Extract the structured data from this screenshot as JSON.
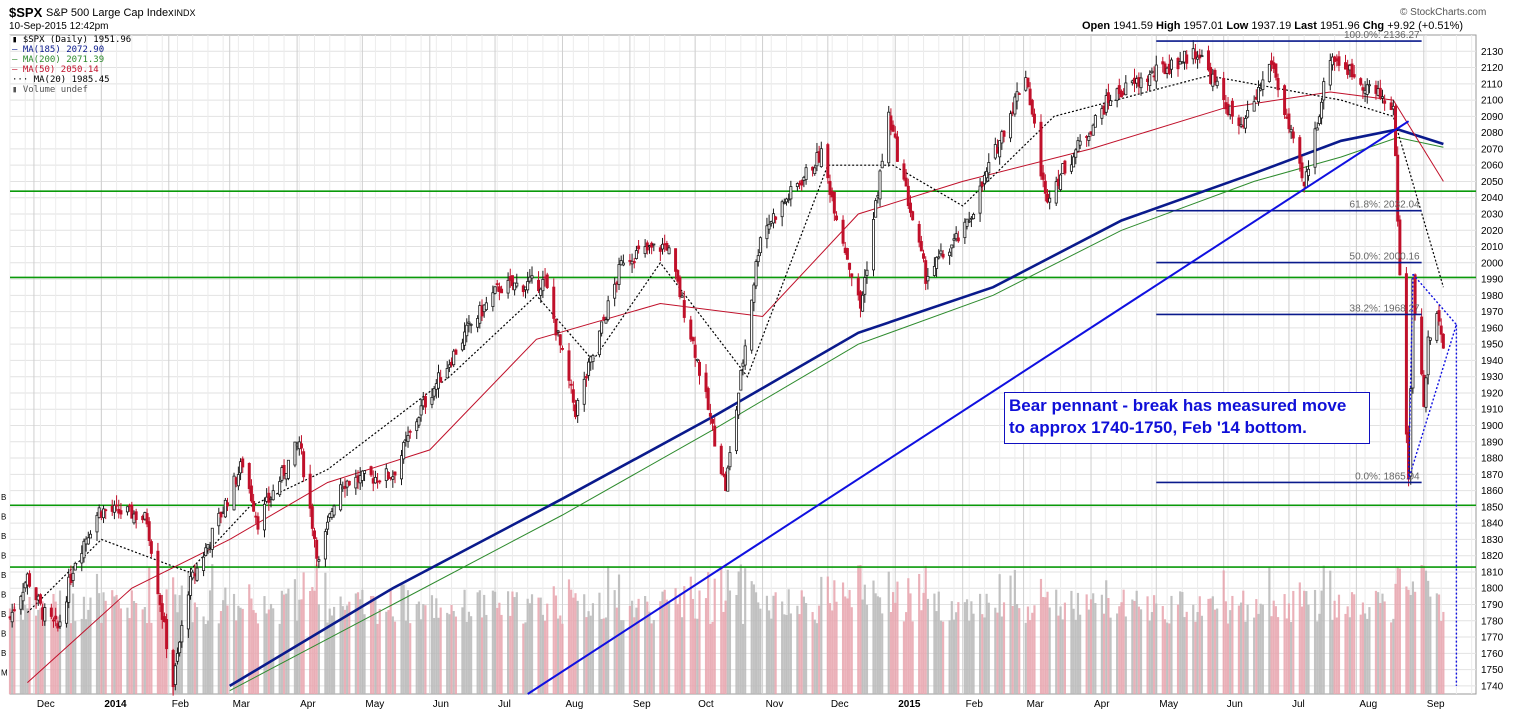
{
  "header": {
    "symbol": "$SPX",
    "name": "S&P 500 Large Cap Index",
    "exchange": "INDX",
    "datetime": "10-Sep-2015 12:42pm",
    "watermark": "© StockCharts.com",
    "quote": {
      "open_label": "Open",
      "open": "1941.59",
      "high_label": "High",
      "high": "1957.01",
      "low_label": "Low",
      "low": "1937.19",
      "last_label": "Last",
      "last": "1951.96",
      "chg_label": "Chg",
      "chg": "+9.92 (+0.51%)"
    }
  },
  "legend": [
    {
      "text": "$SPX (Daily) 1951.96",
      "color": "#1a1a1a",
      "icon": "candlestick-icon"
    },
    {
      "text": "MA(185) 2072.90",
      "color": "#0a1a8c",
      "icon": "line-icon"
    },
    {
      "text": "MA(200) 2071.39",
      "color": "#2e8b2e",
      "icon": "line-icon"
    },
    {
      "text": "MA(50) 2050.14",
      "color": "#c0102a",
      "icon": "line-icon"
    },
    {
      "text": "MA(20) 1985.45",
      "color": "#000000",
      "icon": "dotted-line-icon"
    },
    {
      "text": "Volume undef",
      "color": "#555555",
      "icon": "volume-bars-icon"
    }
  ],
  "annotation": {
    "line1": "Bear pennant - break has measured move",
    "line2": "to approx 1740-1750, Feb '14 bottom."
  },
  "colors": {
    "up": "#1a1a1a",
    "down": "#c0102a",
    "volume_up": "#b7b7b7",
    "volume_down": "#e7a3ad",
    "ma185": "#0a1a8c",
    "ma200": "#2e8b2e",
    "ma50": "#c0102a",
    "ma20": "#000000",
    "support": "#0a9a0a",
    "trend": "#1010e0",
    "fib": "#0a1a8c"
  },
  "chart_data": {
    "type": "candlestick",
    "title": "$SPX S&P 500 Large Cap Index INDX",
    "ylim": [
      1735,
      2140
    ],
    "y_ticks": [
      1740,
      1750,
      1760,
      1770,
      1780,
      1790,
      1800,
      1810,
      1820,
      1830,
      1840,
      1850,
      1860,
      1870,
      1880,
      1890,
      1900,
      1910,
      1920,
      1930,
      1940,
      1950,
      1960,
      1970,
      1980,
      1990,
      2000,
      2010,
      2020,
      2030,
      2040,
      2050,
      2060,
      2070,
      2080,
      2090,
      2100,
      2110,
      2120,
      2130
    ],
    "x_range": [
      "2013-11-20",
      "2015-09-25"
    ],
    "x_tick_labels": [
      {
        "date": "2013-12-01",
        "label": "Dec"
      },
      {
        "date": "2014-01-01",
        "label": "2014"
      },
      {
        "date": "2014-02-01",
        "label": "Feb"
      },
      {
        "date": "2014-03-01",
        "label": "Mar"
      },
      {
        "date": "2014-04-01",
        "label": "Apr"
      },
      {
        "date": "2014-05-01",
        "label": "May"
      },
      {
        "date": "2014-06-01",
        "label": "Jun"
      },
      {
        "date": "2014-07-01",
        "label": "Jul"
      },
      {
        "date": "2014-08-01",
        "label": "Aug"
      },
      {
        "date": "2014-09-01",
        "label": "Sep"
      },
      {
        "date": "2014-10-01",
        "label": "Oct"
      },
      {
        "date": "2014-11-01",
        "label": "Nov"
      },
      {
        "date": "2014-12-01",
        "label": "Dec"
      },
      {
        "date": "2015-01-01",
        "label": "2015"
      },
      {
        "date": "2015-02-01",
        "label": "Feb"
      },
      {
        "date": "2015-03-01",
        "label": "Mar"
      },
      {
        "date": "2015-04-01",
        "label": "Apr"
      },
      {
        "date": "2015-05-01",
        "label": "May"
      },
      {
        "date": "2015-06-01",
        "label": "Jun"
      },
      {
        "date": "2015-07-01",
        "label": "Jul"
      },
      {
        "date": "2015-08-01",
        "label": "Aug"
      },
      {
        "date": "2015-09-01",
        "label": "Sep"
      }
    ],
    "close_path": [
      [
        "2013-11-20",
        1782
      ],
      [
        "2013-11-28",
        1807
      ],
      [
        "2013-12-05",
        1785
      ],
      [
        "2013-12-12",
        1775
      ],
      [
        "2013-12-20",
        1818
      ],
      [
        "2013-12-31",
        1848
      ],
      [
        "2014-01-15",
        1846
      ],
      [
        "2014-01-22",
        1842
      ],
      [
        "2014-01-28",
        1792
      ],
      [
        "2014-02-03",
        1741
      ],
      [
        "2014-02-10",
        1800
      ],
      [
        "2014-02-20",
        1830
      ],
      [
        "2014-03-07",
        1877
      ],
      [
        "2014-03-14",
        1841
      ],
      [
        "2014-04-02",
        1890
      ],
      [
        "2014-04-11",
        1815
      ],
      [
        "2014-04-20",
        1865
      ],
      [
        "2014-05-15",
        1870
      ],
      [
        "2014-05-28",
        1910
      ],
      [
        "2014-06-20",
        1962
      ],
      [
        "2014-07-03",
        1985
      ],
      [
        "2014-07-24",
        1988
      ],
      [
        "2014-08-07",
        1909
      ],
      [
        "2014-08-29",
        2003
      ],
      [
        "2014-09-18",
        2011
      ],
      [
        "2014-10-01",
        1946
      ],
      [
        "2014-10-15",
        1862
      ],
      [
        "2014-10-31",
        2018
      ],
      [
        "2014-11-28",
        2067
      ],
      [
        "2014-12-16",
        1972
      ],
      [
        "2014-12-29",
        2090
      ],
      [
        "2015-01-15",
        1992
      ],
      [
        "2015-02-02",
        2020
      ],
      [
        "2015-03-02",
        2117
      ],
      [
        "2015-03-11",
        2040
      ],
      [
        "2015-04-10",
        2102
      ],
      [
        "2015-05-20",
        2130
      ],
      [
        "2015-06-09",
        2080
      ],
      [
        "2015-06-23",
        2124
      ],
      [
        "2015-07-08",
        2046
      ],
      [
        "2015-07-20",
        2128
      ],
      [
        "2015-08-10",
        2104
      ],
      [
        "2015-08-18",
        2096
      ],
      [
        "2015-08-24",
        1893
      ],
      [
        "2015-08-25",
        1867
      ],
      [
        "2015-08-27",
        1987
      ],
      [
        "2015-09-01",
        1913
      ],
      [
        "2015-09-03",
        1951
      ],
      [
        "2015-09-08",
        1969
      ],
      [
        "2015-09-10",
        1952
      ]
    ],
    "moving_averages": {
      "MA(185)": [
        [
          "2014-03-01",
          1740
        ],
        [
          "2014-05-15",
          1800
        ],
        [
          "2014-08-01",
          1855
        ],
        [
          "2014-10-10",
          1906
        ],
        [
          "2014-12-15",
          1957
        ],
        [
          "2015-02-15",
          1985
        ],
        [
          "2015-04-15",
          2026
        ],
        [
          "2015-06-15",
          2055
        ],
        [
          "2015-07-25",
          2075
        ],
        [
          "2015-08-20",
          2082
        ],
        [
          "2015-09-10",
          2073
        ]
      ],
      "MA(200)": [
        [
          "2014-03-01",
          1737
        ],
        [
          "2014-05-15",
          1790
        ],
        [
          "2014-08-01",
          1845
        ],
        [
          "2014-10-10",
          1898
        ],
        [
          "2014-12-15",
          1950
        ],
        [
          "2015-02-15",
          1980
        ],
        [
          "2015-04-15",
          2020
        ],
        [
          "2015-06-15",
          2050
        ],
        [
          "2015-07-25",
          2065
        ],
        [
          "2015-08-20",
          2077
        ],
        [
          "2015-09-10",
          2071
        ]
      ],
      "MA(50)": [
        [
          "2013-11-28",
          1742
        ],
        [
          "2014-01-15",
          1800
        ],
        [
          "2014-03-01",
          1830
        ],
        [
          "2014-04-15",
          1865
        ],
        [
          "2014-06-01",
          1885
        ],
        [
          "2014-07-20",
          1953
        ],
        [
          "2014-09-15",
          1975
        ],
        [
          "2014-11-01",
          1967
        ],
        [
          "2014-12-15",
          2030
        ],
        [
          "2015-02-01",
          2050
        ],
        [
          "2015-04-01",
          2070
        ],
        [
          "2015-06-01",
          2095
        ],
        [
          "2015-07-20",
          2105
        ],
        [
          "2015-08-18",
          2100
        ],
        [
          "2015-09-10",
          2050
        ]
      ],
      "MA(20)": [
        [
          "2013-11-28",
          1785
        ],
        [
          "2014-01-01",
          1830
        ],
        [
          "2014-02-10",
          1810
        ],
        [
          "2014-03-10",
          1850
        ],
        [
          "2014-04-15",
          1873
        ],
        [
          "2014-06-10",
          1930
        ],
        [
          "2014-07-20",
          1980
        ],
        [
          "2014-08-15",
          1940
        ],
        [
          "2014-09-15",
          2000
        ],
        [
          "2014-10-25",
          1930
        ],
        [
          "2014-12-01",
          2060
        ],
        [
          "2014-12-31",
          2060
        ],
        [
          "2015-02-01",
          2035
        ],
        [
          "2015-03-15",
          2090
        ],
        [
          "2015-05-25",
          2115
        ],
        [
          "2015-07-25",
          2100
        ],
        [
          "2015-08-18",
          2090
        ],
        [
          "2015-09-10",
          1985
        ]
      ]
    },
    "support_levels": [
      2044,
      1991,
      1851,
      1813
    ],
    "trendline": [
      [
        "2014-07-16",
        1735
      ],
      [
        "2015-08-25",
        2087
      ]
    ],
    "fibonacci": [
      {
        "level": "100.0%",
        "price": 2136.27,
        "label": "100.0%: 2136.27"
      },
      {
        "level": "61.8%",
        "price": 2032.04,
        "label": "61.8%: 2032.04"
      },
      {
        "level": "50.0%",
        "price": 2000.16,
        "label": "50.0%: 2000.16"
      },
      {
        "level": "38.2%",
        "price": 1968.27,
        "label": "38.2%: 1968.27"
      },
      {
        "level": "0.0%",
        "price": 1865.04,
        "label": "0.0%: 1865.04"
      }
    ],
    "pennant": [
      [
        "2015-08-27",
        1993
      ],
      [
        "2015-09-16",
        1962
      ],
      [
        "2015-08-25",
        1867
      ]
    ],
    "measured_move_line": [
      [
        "2015-09-16",
        1962
      ],
      [
        "2015-09-16",
        1740
      ]
    ],
    "volume_axis_labels": [
      "B",
      "B",
      "B",
      "B",
      "B",
      "B",
      "B",
      "B",
      "B",
      "M"
    ]
  }
}
